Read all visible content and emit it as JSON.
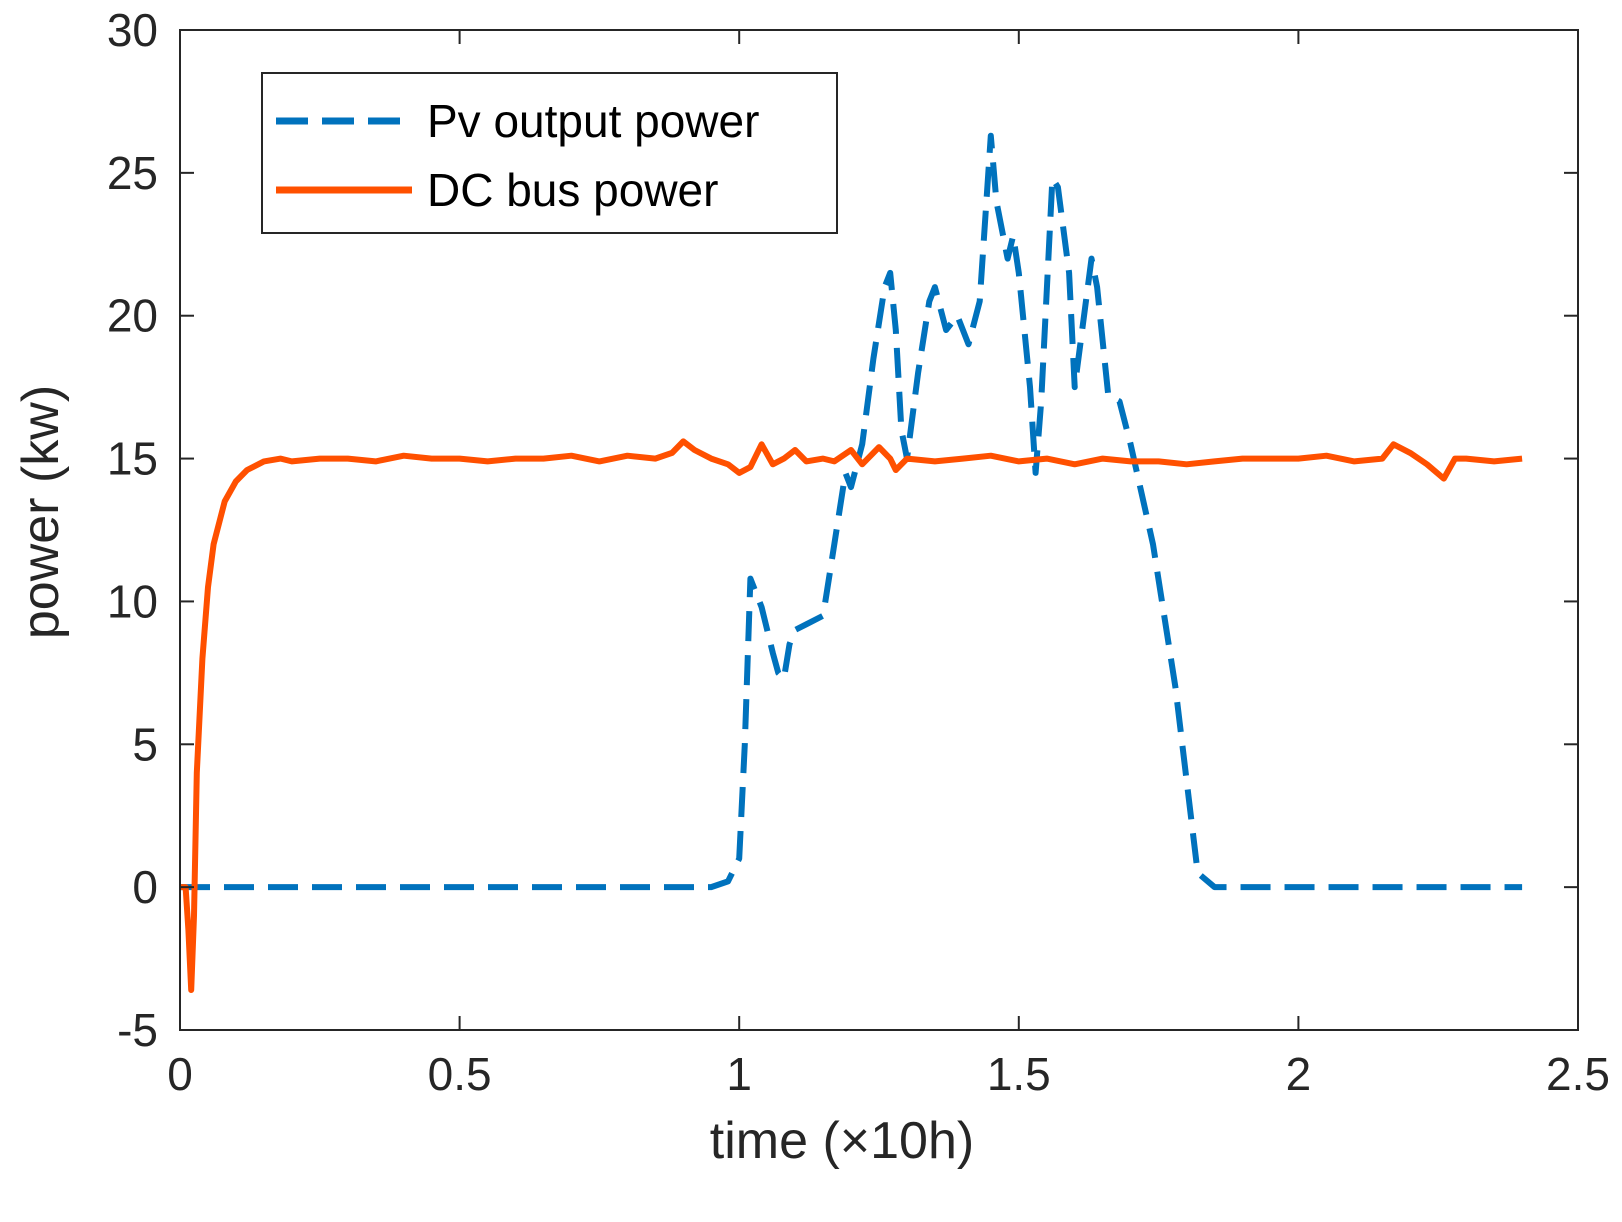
{
  "chart_data": {
    "type": "line",
    "title": "",
    "xlabel": "time (×10h)",
    "ylabel": "power (kw)",
    "xlim": [
      0,
      2.5
    ],
    "ylim": [
      -5,
      30
    ],
    "xticks": [
      0,
      0.5,
      1,
      1.5,
      2,
      2.5
    ],
    "xtick_labels": [
      "0",
      "0.5",
      "1",
      "1.5",
      "2",
      "2.5"
    ],
    "yticks": [
      -5,
      0,
      5,
      10,
      15,
      20,
      25,
      30
    ],
    "ytick_labels": [
      "-5",
      "0",
      "5",
      "10",
      "15",
      "20",
      "25",
      "30"
    ],
    "grid": false,
    "legend_position": "top-left",
    "series": [
      {
        "name": "Pv output power",
        "color": "#0072BD",
        "style": "dashed",
        "x": [
          0,
          0.2,
          0.4,
          0.6,
          0.8,
          0.95,
          0.98,
          1.0,
          1.01,
          1.02,
          1.04,
          1.06,
          1.07,
          1.08,
          1.09,
          1.1,
          1.12,
          1.15,
          1.17,
          1.19,
          1.2,
          1.22,
          1.24,
          1.26,
          1.27,
          1.28,
          1.29,
          1.3,
          1.32,
          1.34,
          1.35,
          1.37,
          1.39,
          1.41,
          1.43,
          1.45,
          1.46,
          1.48,
          1.49,
          1.5,
          1.52,
          1.53,
          1.54,
          1.56,
          1.57,
          1.59,
          1.6,
          1.61,
          1.63,
          1.64,
          1.66,
          1.68,
          1.7,
          1.74,
          1.78,
          1.82,
          1.85,
          2.0,
          2.2,
          2.4
        ],
        "y": [
          0,
          0,
          0,
          0,
          0,
          0,
          0.2,
          1.0,
          5.0,
          10.8,
          9.8,
          8.2,
          7.5,
          7.3,
          8.5,
          9.0,
          9.2,
          9.5,
          12.0,
          14.5,
          14.0,
          15.5,
          18.5,
          21.0,
          21.5,
          19.5,
          16.0,
          15.0,
          18.0,
          20.5,
          21.0,
          19.5,
          20.0,
          19.0,
          20.5,
          26.3,
          24.0,
          22.0,
          22.8,
          21.5,
          17.5,
          14.5,
          17.0,
          24.8,
          24.5,
          21.5,
          17.5,
          19.0,
          22.0,
          21.0,
          17.2,
          17.0,
          15.5,
          12.0,
          7.0,
          0.5,
          0,
          0,
          0,
          0
        ]
      },
      {
        "name": "DC bus power",
        "color": "#FF5000",
        "style": "solid",
        "x": [
          0,
          0.01,
          0.015,
          0.02,
          0.025,
          0.03,
          0.04,
          0.05,
          0.06,
          0.08,
          0.1,
          0.12,
          0.15,
          0.18,
          0.2,
          0.25,
          0.3,
          0.35,
          0.4,
          0.45,
          0.5,
          0.55,
          0.6,
          0.65,
          0.7,
          0.75,
          0.8,
          0.85,
          0.88,
          0.9,
          0.92,
          0.95,
          0.98,
          1.0,
          1.02,
          1.04,
          1.06,
          1.08,
          1.1,
          1.12,
          1.15,
          1.17,
          1.2,
          1.22,
          1.25,
          1.27,
          1.28,
          1.3,
          1.35,
          1.4,
          1.45,
          1.5,
          1.55,
          1.6,
          1.65,
          1.7,
          1.75,
          1.8,
          1.85,
          1.9,
          1.95,
          2.0,
          2.05,
          2.1,
          2.15,
          2.17,
          2.2,
          2.23,
          2.26,
          2.28,
          2.3,
          2.35,
          2.4
        ],
        "y": [
          0,
          0,
          -1.5,
          -3.6,
          -1.0,
          4.0,
          8.0,
          10.5,
          12.0,
          13.5,
          14.2,
          14.6,
          14.9,
          15.0,
          14.9,
          15.0,
          15.0,
          14.9,
          15.1,
          15.0,
          15.0,
          14.9,
          15.0,
          15.0,
          15.1,
          14.9,
          15.1,
          15.0,
          15.2,
          15.6,
          15.3,
          15.0,
          14.8,
          14.5,
          14.7,
          15.5,
          14.8,
          15.0,
          15.3,
          14.9,
          15.0,
          14.9,
          15.3,
          14.8,
          15.4,
          15.0,
          14.6,
          15.0,
          14.9,
          15.0,
          15.1,
          14.9,
          15.0,
          14.8,
          15.0,
          14.9,
          14.9,
          14.8,
          14.9,
          15.0,
          15.0,
          15.0,
          15.1,
          14.9,
          15.0,
          15.5,
          15.2,
          14.8,
          14.3,
          15.0,
          15.0,
          14.9,
          15.0
        ]
      }
    ]
  }
}
